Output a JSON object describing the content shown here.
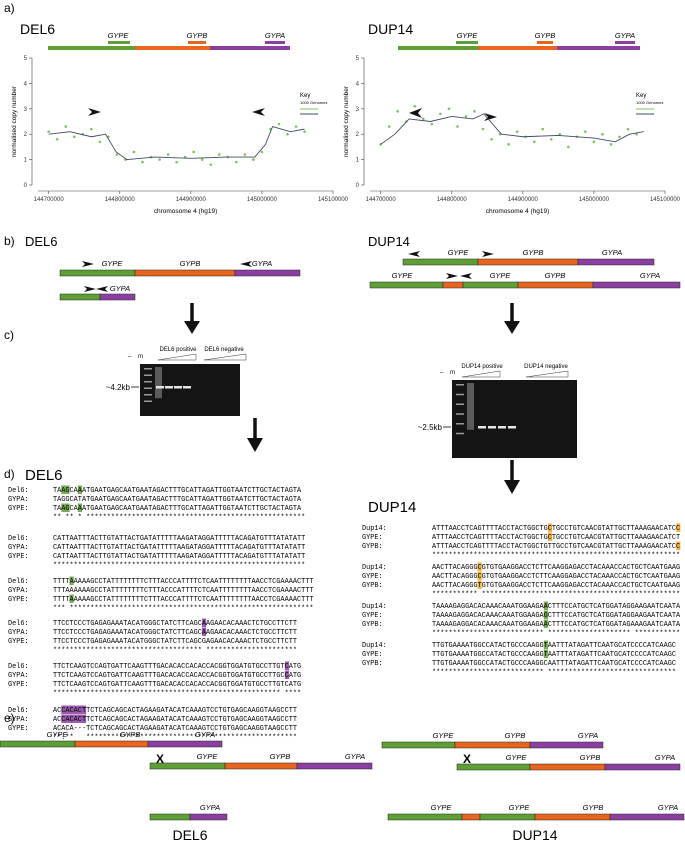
{
  "panel_a": {
    "label": "a)"
  },
  "chart_data": [
    {
      "type": "scatter",
      "title": "DEL6",
      "gene_labels": [
        "GYPE",
        "GYPB",
        "GYPA"
      ],
      "x_label": "chromosome 4 (hg19)",
      "y_label": "normalised copy number",
      "legend_title": "Key",
      "legend_subtitle": "1000 Genomes",
      "xlim": [
        144685000,
        145100000
      ],
      "ylim": [
        0,
        5
      ],
      "xticks": [
        144700000,
        144800000,
        144900000,
        145000000,
        145100000
      ],
      "yticks": [
        0,
        1,
        2,
        3,
        4,
        5
      ],
      "series": [
        {
          "color": "#7cc35a",
          "x": [
            144700000,
            144712000,
            144724000,
            144736000,
            144748000,
            144760000,
            144772000,
            144784000,
            144796000,
            144808000,
            144820000,
            144832000,
            144844000,
            144856000,
            144868000,
            144880000,
            144892000,
            144904000,
            144916000,
            144928000,
            144940000,
            144952000,
            144964000,
            144976000,
            144988000,
            145000000,
            145012000,
            145024000,
            145036000,
            145048000,
            145060000
          ],
          "values": [
            2.1,
            1.8,
            2.3,
            1.9,
            2.0,
            2.2,
            1.7,
            1.9,
            1.2,
            1.0,
            1.3,
            0.9,
            1.1,
            1.0,
            1.2,
            0.9,
            1.1,
            1.3,
            1.0,
            0.8,
            1.2,
            1.1,
            0.9,
            1.2,
            1.0,
            1.3,
            2.2,
            2.4,
            2.0,
            2.3,
            2.1
          ]
        }
      ],
      "line": {
        "color": "#3f4a66",
        "x": [
          144700000,
          144730000,
          144760000,
          144780000,
          144795000,
          144810000,
          144850000,
          144900000,
          144950000,
          144990000,
          145005000,
          145015000,
          145040000,
          145060000
        ],
        "values": [
          2.0,
          2.1,
          1.9,
          2.0,
          1.3,
          1.0,
          1.1,
          1.05,
          1.1,
          1.1,
          1.6,
          2.3,
          2.1,
          2.2
        ]
      }
    },
    {
      "type": "scatter",
      "title": "DUP14",
      "gene_labels": [
        "GYPE",
        "GYPB",
        "GYPA"
      ],
      "x_label": "chromosome 4 (hg19)",
      "y_label": "normalised copy number",
      "legend_title": "Key",
      "legend_subtitle": "1000 Genomes",
      "xlim": [
        144685000,
        145100000
      ],
      "ylim": [
        0,
        5
      ],
      "xticks": [
        144700000,
        144800000,
        144900000,
        145000000,
        145100000
      ],
      "yticks": [
        0,
        1,
        2,
        3,
        4,
        5
      ],
      "series": [
        {
          "color": "#7cc35a",
          "x": [
            144700000,
            144712000,
            144724000,
            144736000,
            144748000,
            144760000,
            144772000,
            144784000,
            144796000,
            144808000,
            144820000,
            144832000,
            144844000,
            144856000,
            144868000,
            144880000,
            144892000,
            144904000,
            144916000,
            144928000,
            144940000,
            144952000,
            144964000,
            144976000,
            144988000,
            145000000,
            145012000,
            145024000,
            145036000,
            145048000,
            145060000
          ],
          "values": [
            1.6,
            2.3,
            2.9,
            2.5,
            3.1,
            2.6,
            2.4,
            2.8,
            3.0,
            2.3,
            2.7,
            2.9,
            2.2,
            1.8,
            2.0,
            1.6,
            2.1,
            1.9,
            1.7,
            2.2,
            1.8,
            2.0,
            1.5,
            1.9,
            2.1,
            1.7,
            2.0,
            1.6,
            1.9,
            2.2,
            2.0
          ]
        }
      ],
      "line": {
        "color": "#3f4a66",
        "x": [
          144700000,
          144720000,
          144740000,
          144770000,
          144800000,
          144830000,
          144845000,
          144870000,
          144900000,
          144950000,
          145000000,
          145030000,
          145050000,
          145070000
        ],
        "values": [
          1.6,
          2.0,
          2.6,
          2.5,
          2.7,
          2.6,
          2.8,
          2.0,
          1.9,
          1.95,
          1.85,
          1.7,
          2.0,
          2.1
        ]
      }
    }
  ],
  "panel_b": {
    "label": "b)",
    "del6": {
      "title": "DEL6",
      "rows": [
        [
          "GYPE",
          "GYPB",
          "GYPA"
        ],
        [
          "GYPA"
        ]
      ]
    },
    "dup14": {
      "title": "DUP14",
      "rows": [
        [
          "GYPE",
          "GYPB",
          "GYPA"
        ],
        [
          "GYPE",
          "GYPE",
          "GYPB",
          "GYPA"
        ]
      ]
    }
  },
  "panel_c": {
    "label": "c)",
    "del6": {
      "lanes": [
        "–",
        "m"
      ],
      "positive": "DEL6 positive",
      "negative": "DEL6 negative",
      "size": "~4.2kb"
    },
    "dup14": {
      "lanes": [
        "–",
        "m"
      ],
      "positive": "DUP14 positive",
      "negative": "DUP14 negative",
      "size": "~2.5kb"
    }
  },
  "panel_d": {
    "label": "d)",
    "del6": {
      "title": "DEL6",
      "blocks": [
        {
          "rows": [
            [
              "Del6:",
              "TAAGCAAATGAATGAGCAATGAATAGACTTTGCATTAGATTGGTAATCTTGCTACTAGTA"
            ],
            [
              "GYPA:",
              "TAGGCATATGAATGAGCAATGAATAGACTTTGCATTAGATTGGTAATCTTGCTACTAGTA"
            ],
            [
              "GYPE:",
              "TAAGCAAATGAATGAGCAATGAATAGACTTTGCATTAGATTGGTAATCTTGCTACTAGTA"
            ]
          ],
          "consensus": "** ** * *****************************************************"
        },
        {
          "rows": [
            [
              "Del6:",
              "CATTAATTTACTTGTATTACTGATATTTTTAAGATAGGATTTTTACAGATGTTTATATATT"
            ],
            [
              "GYPA:",
              "CATTAATTTACTTGTATTACTGATATTTTTAAGATAGGATTTTTACAGATGTTTATATATT"
            ],
            [
              "GYPE:",
              "CATTAATTTACTTGTATTACTGATATTTTTAAGATAGGATTTTTACAGATGTTTATATATT"
            ]
          ],
          "consensus": "*************************************************************"
        },
        {
          "rows": [
            [
              "Del6:",
              "TTTTAAAAAGCCTATTTTTTTTCTTTACCCATTTTCTCAATTTTTTTTAACCTCGAAAACTTT"
            ],
            [
              "GYPA:",
              "TTTAAAAAAGCCTATTTTTTTTCTTTACCCATTTTCTCAATTTTTTTTAACCTCGAAAACTTT"
            ],
            [
              "GYPE:",
              "TTTTAAAAAGCCTATTTTTTTTCTTTACCCATTTTCTCAATTTTTTTTAACCTCGAAAACTTT"
            ]
          ],
          "consensus": "*** ***********************************************************"
        },
        {
          "rows": [
            [
              "Del6:",
              "TTCCTCCCTGAGAGAAATACATGGGCTATCTTCAGCAAGAACACAAACTCTGCCTTCTT"
            ],
            [
              "GYPA:",
              "TTCCTCCCTGAGAGAAATACATGGGCTATCTTCAGCAAGAACACAAACTCTGCCTTCTT"
            ],
            [
              "GYPE:",
              "TTCCTCCCTGAGAGAAATACATGGGCTATCTTCAGCGAGAACACAAACTCTGCCTTCTT"
            ]
          ],
          "consensus": "************************************ **********************"
        },
        {
          "rows": [
            [
              "Del6:",
              "TTCTCAAGTCCAGTGATTCAAGTTTGACACACCACACCACGGTGGATGTGCCTTGTCATG"
            ],
            [
              "GYPA:",
              "TTCTCAAGTCCAGTGATTCAAGTTTGACACACCACACCACGGTGGATGTGCCTTGCCATG"
            ],
            [
              "GYPE:",
              "TTCTCAAGTCCAGTGATTCAAGTTTGACACACCACACCACGGTGGATGTGCCTTGTCATG"
            ]
          ],
          "consensus": "******************************************************* ****"
        },
        {
          "rows": [
            [
              "Del6:",
              "ACCACACTTCTCAGCAGCACTAGAAGATACATCAAAGTCCTGTGAGCAAGGTAAGCCTT"
            ],
            [
              "GYPA:",
              "ACCACACTTCTCAGCAGCACTAGAAGATACATCAAAGTCCTGTGAGCAAGGTAAGCCTT"
            ],
            [
              "GYPE:",
              "ACACA---TCTCAGCAGCACTAGAAGATACATCAAAGTCCTGTGAGCAAGGTAAGCCTT"
            ]
          ],
          "consensus": "**.**   ***************************************************"
        }
      ]
    },
    "dup14": {
      "title": "DUP14",
      "blocks": [
        {
          "rows": [
            [
              "Dup14:",
              "ATTTAACCTCAGTTTTACCTACTGGCTGCTGCCTGTCAACGTATTGCTTAAAGAACATCC"
            ],
            [
              "GYPE:",
              "ATTTAACCTCAGTTTTACCTACTGGCTGCTGCCTGTCAACGTATTGCTTAAAGAACATCT"
            ],
            [
              "GYPB:",
              "ATTTAACCTCAGTTTTACCTACTGGCTGTTGCCTGTCAACGTATTGCTTAAAGAACATCC"
            ]
          ],
          "consensus": "************************************************************ "
        },
        {
          "rows": [
            [
              "Dup14:",
              "AACTTACAGGGCGTGTGAAGGACCTCTTCAAGGAGACCTACAAACCACTGCTCAATGAAG"
            ],
            [
              "GYPE:",
              "AACTTACAGGGCGTGTGAAGGACCTCTTCAAGGAGACCTACAAACCACTGCTCAATGAAG"
            ],
            [
              "GYPB:",
              "AACTTACAGGGTGTGTGAAGGACCTCTTCAAGGAGACCTACAAACCACTGCTCAATGAAG"
            ]
          ],
          "consensus": "*********** ************************************************"
        },
        {
          "rows": [
            [
              "Dup14:",
              "TAAAAGAGGACACAAACAAATGGAAGAACTTTCCATGCTCATGGATAGGAAGAATCAATA"
            ],
            [
              "GYPE:",
              "TAAAAGAGGACACAAACAAATGGAAGAGCTTTCCATGCTCATGGATAGGAAGAATCAATA"
            ],
            [
              "GYPB:",
              "TAAAAGAGGACACAAACAAATGGAAGAACTTTCCATGCTCATGGATAGAAAGAATCAATA"
            ]
          ],
          "consensus": "*************************** ******************** ***********"
        },
        {
          "rows": [
            [
              "Dup14:",
              "TTGTGAAAATGGCCATACTGCCCAAGGTAATTTATAGATTCAATGCATCCCCATCAAGC"
            ],
            [
              "GYPE:",
              "TTGTGAAAATGGCCATACTGCCCAAGGTAATTTATAGATTCAATGCATCCCCATCAAGC"
            ],
            [
              "GYPB:",
              "TTGTGAAAATGGCCATACTGCCCAAGGCAATTTATAGATTCAATGCATCCCCATCAAGC"
            ]
          ],
          "consensus": "*************************** *******************************"
        }
      ]
    }
  },
  "panel_e": {
    "label": "e)",
    "del6": {
      "title": "DEL6",
      "crossover": "X",
      "rows": [
        [
          "GYPE",
          "GYPB",
          "GYPA"
        ],
        [
          "GYPE",
          "GYPB",
          "GYPA"
        ],
        [
          "GYPA"
        ]
      ]
    },
    "dup14": {
      "title": "DUP14",
      "crossover": "X",
      "rows": [
        [
          "GYPE",
          "GYPB",
          "GYPA"
        ],
        [
          "GYPE",
          "GYPB",
          "GYPA"
        ],
        [
          "GYPE",
          "GYPE",
          "GYPB",
          "GYPA"
        ]
      ]
    }
  }
}
